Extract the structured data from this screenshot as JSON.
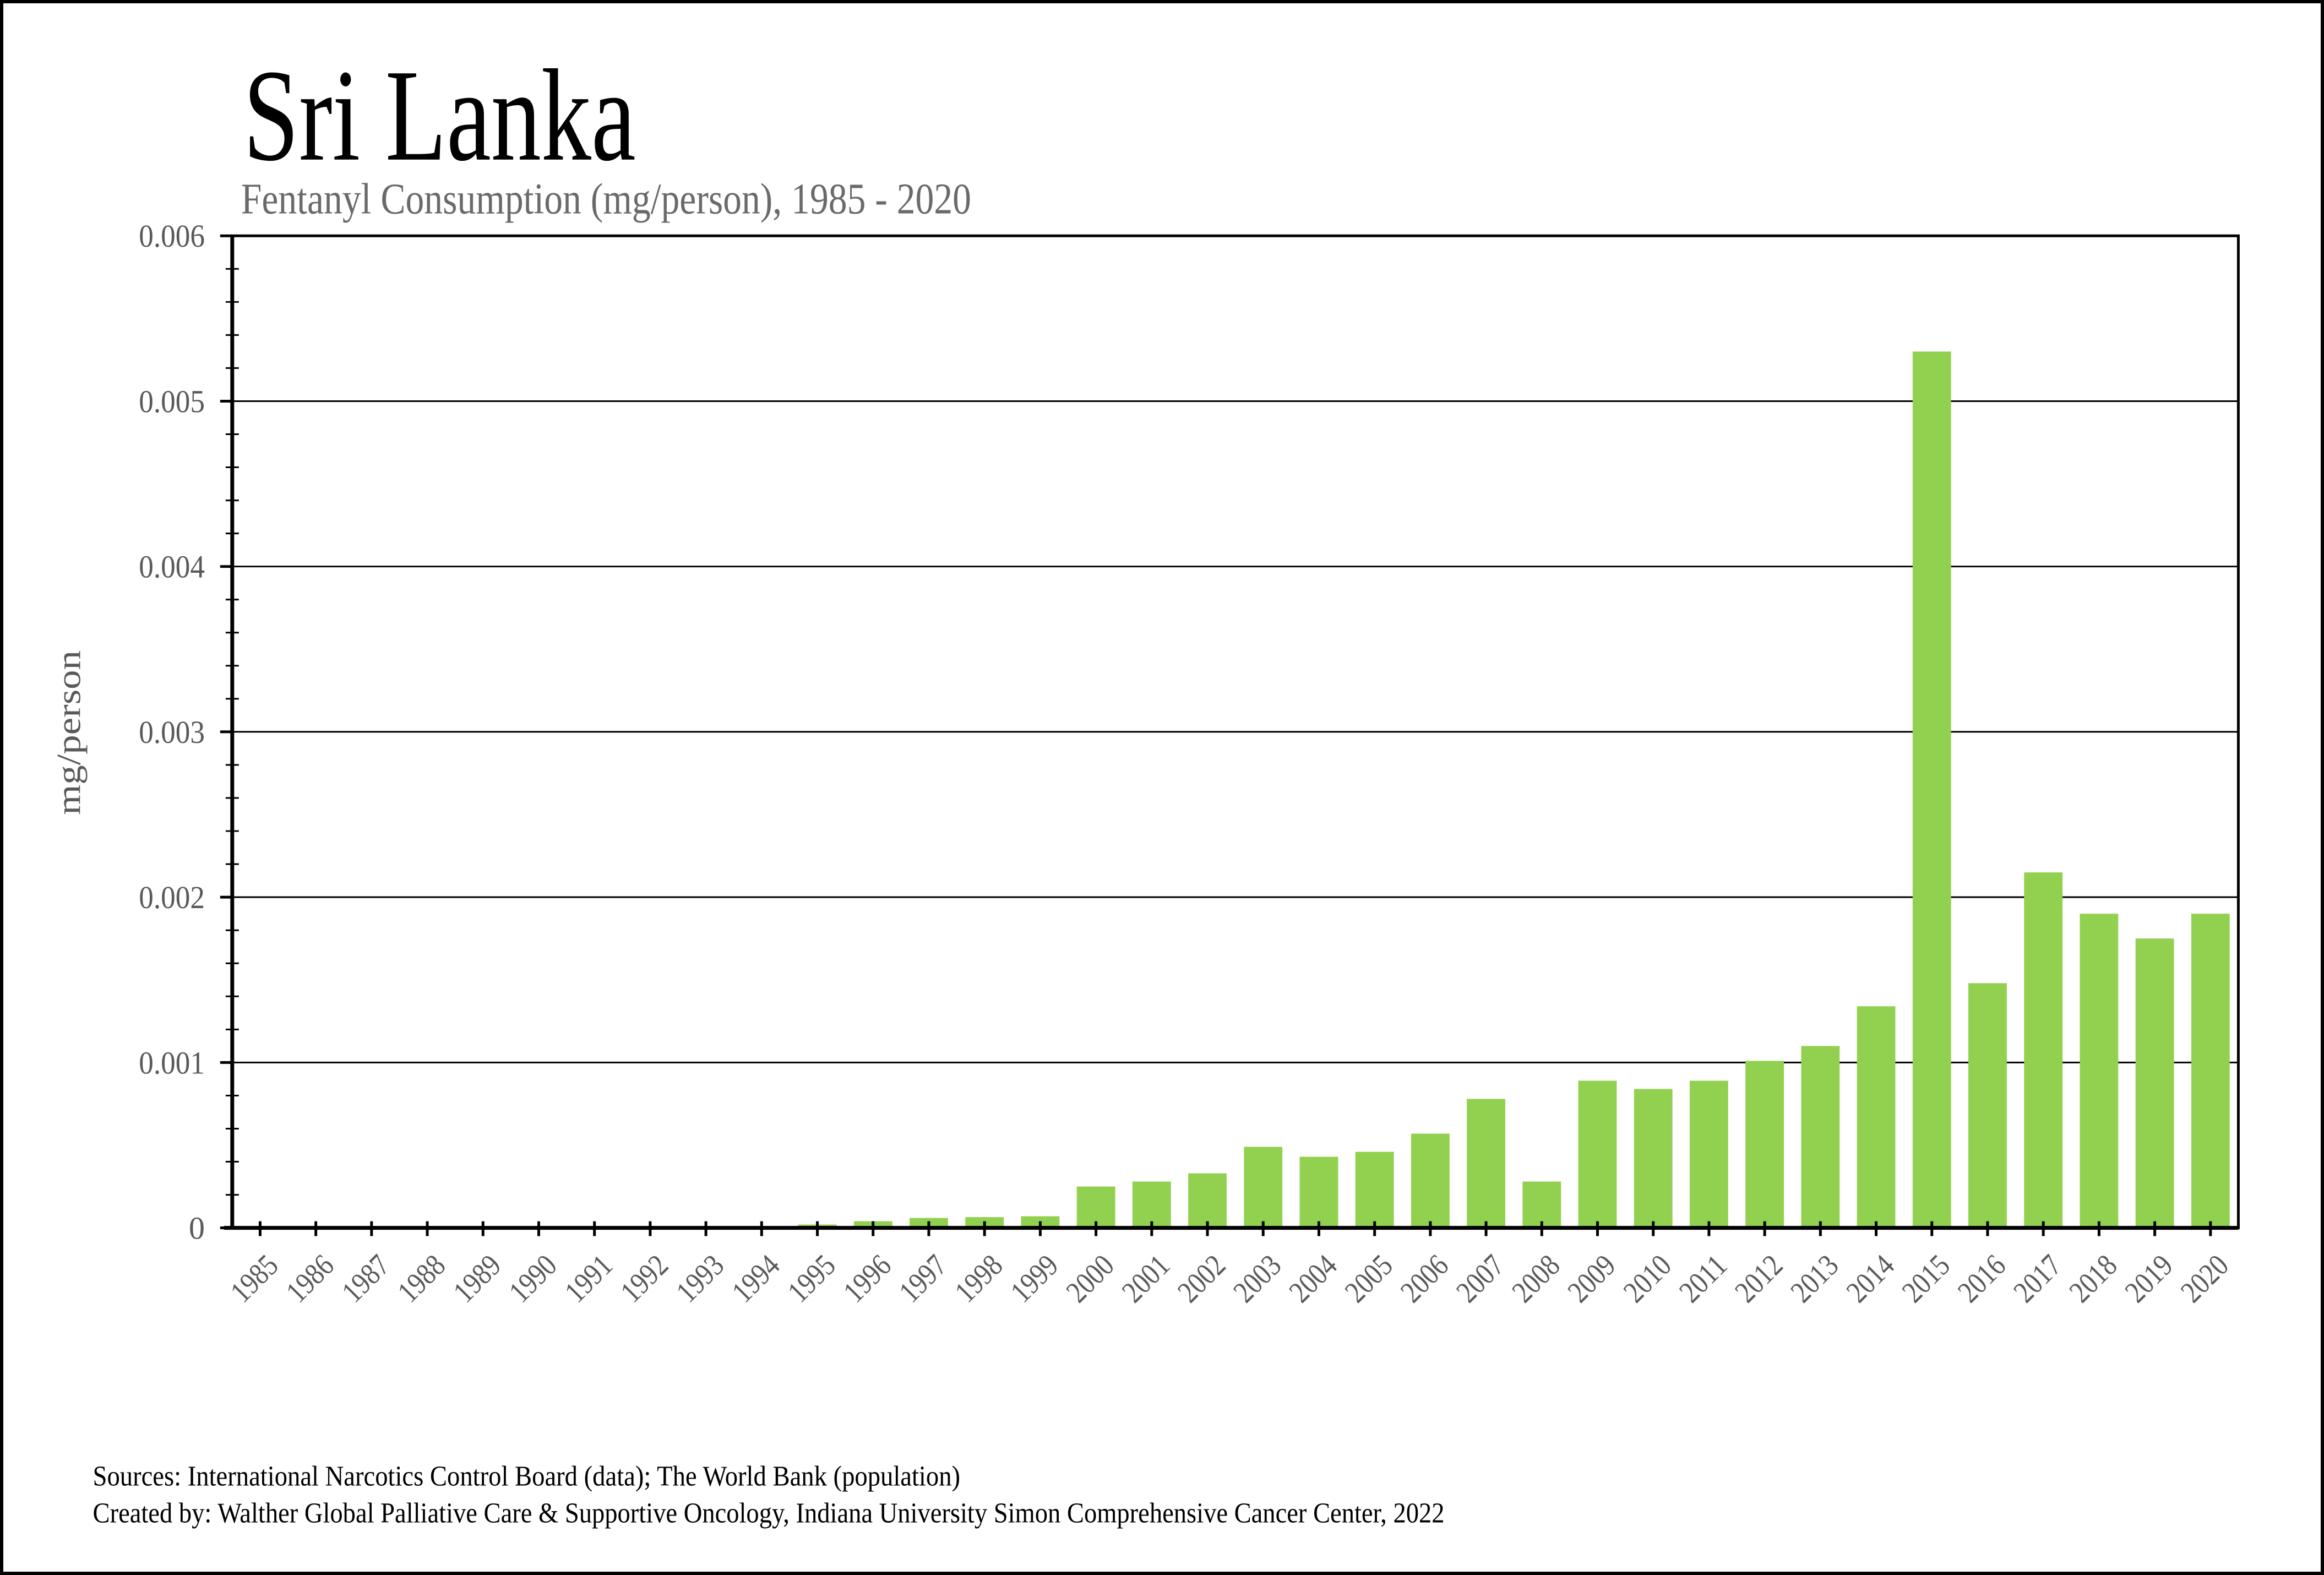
{
  "header": {
    "title": "Sri Lanka",
    "subtitle": "Fentanyl Consumption (mg/person), 1985 - 2020"
  },
  "footer": {
    "sources_line": "Sources: International Narcotics Control Board (data); The World Bank (population)",
    "created_line": "Created by: Walther Global Palliative Care & Supportive Oncology, Indiana University Simon Comprehensive Cancer Center, 2022"
  },
  "chart_data": {
    "type": "bar",
    "title": "Sri Lanka",
    "subtitle": "Fentanyl Consumption (mg/person), 1985 - 2020",
    "xlabel": "",
    "ylabel": "mg/person",
    "ylim": [
      0,
      0.006
    ],
    "ytick_values": [
      0,
      0.001,
      0.002,
      0.003,
      0.004,
      0.005,
      0.006
    ],
    "ytick_labels": [
      "0",
      "0.001",
      "0.002",
      "0.003",
      "0.004",
      "0.005",
      "0.006"
    ],
    "y_minor_step": 0.0002,
    "grid": "horizontal-major",
    "legend": "none",
    "bar_color": "#92D050",
    "axis_text_color": "#595959",
    "subtitle_color": "#6a6a6a",
    "x_tick_label_rotation_deg": 45,
    "categories": [
      "1985",
      "1986",
      "1987",
      "1988",
      "1989",
      "1990",
      "1991",
      "1992",
      "1993",
      "1994",
      "1995",
      "1996",
      "1997",
      "1998",
      "1999",
      "2000",
      "2001",
      "2002",
      "2003",
      "2004",
      "2005",
      "2006",
      "2007",
      "2008",
      "2009",
      "2010",
      "2011",
      "2012",
      "2013",
      "2014",
      "2015",
      "2016",
      "2017",
      "2018",
      "2019",
      "2020"
    ],
    "values": [
      0,
      0,
      0,
      0,
      0,
      0,
      0,
      0,
      0,
      0,
      2e-05,
      4e-05,
      6e-05,
      6.5e-05,
      7e-05,
      0.00025,
      0.00028,
      0.00033,
      0.00049,
      0.00043,
      0.00046,
      0.00057,
      0.00078,
      0.00028,
      0.00089,
      0.00084,
      0.00089,
      0.00101,
      0.0011,
      0.00134,
      0.0053,
      0.00148,
      0.00215,
      0.0019,
      0.00175,
      0.0019
    ]
  }
}
